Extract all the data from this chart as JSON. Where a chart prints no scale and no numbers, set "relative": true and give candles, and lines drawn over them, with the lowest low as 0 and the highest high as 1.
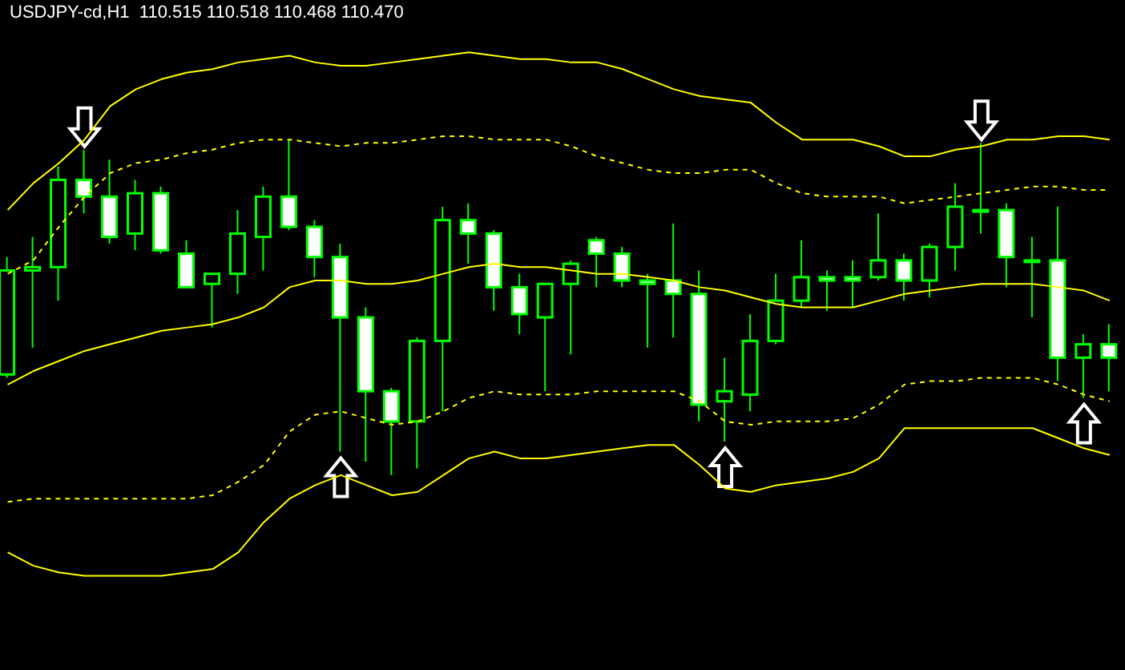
{
  "chart_data": {
    "type": "candlestick",
    "title": "USDJPY-cd,H1  110.515 110.518 110.468 110.470",
    "relative": true,
    "color": "#00ff00",
    "categories": [
      null,
      null,
      null,
      null,
      null,
      null,
      null,
      null,
      null,
      null,
      null,
      null,
      null,
      null,
      null,
      null,
      null,
      null,
      null,
      null,
      null,
      null,
      null,
      null,
      null,
      null,
      null,
      null,
      null,
      null,
      null,
      null,
      null,
      null,
      null,
      null,
      null,
      null,
      null,
      null,
      null,
      null,
      null,
      null
    ],
    "ohlc": [
      [
        0.3,
        0.65,
        0.29,
        0.61
      ],
      [
        0.61,
        0.71,
        0.38,
        0.62
      ],
      [
        0.62,
        0.92,
        0.52,
        0.88
      ],
      [
        0.88,
        0.97,
        0.78,
        0.83
      ],
      [
        0.83,
        0.94,
        0.69,
        0.71
      ],
      [
        0.72,
        0.88,
        0.67,
        0.84
      ],
      [
        0.84,
        0.86,
        0.66,
        0.67
      ],
      [
        0.66,
        0.7,
        0.56,
        0.56
      ],
      [
        0.57,
        0.6,
        0.44,
        0.6
      ],
      [
        0.6,
        0.79,
        0.54,
        0.72
      ],
      [
        0.71,
        0.86,
        0.61,
        0.83
      ],
      [
        0.83,
        1.0,
        0.73,
        0.74
      ],
      [
        0.74,
        0.76,
        0.59,
        0.65
      ],
      [
        0.65,
        0.69,
        0.07,
        0.47
      ],
      [
        0.47,
        0.5,
        0.04,
        0.25
      ],
      [
        0.25,
        0.26,
        0.0,
        0.16
      ],
      [
        0.16,
        0.41,
        0.02,
        0.4
      ],
      [
        0.4,
        0.8,
        0.19,
        0.76
      ],
      [
        0.76,
        0.81,
        0.63,
        0.72
      ],
      [
        0.72,
        0.73,
        0.49,
        0.56
      ],
      [
        0.56,
        0.6,
        0.42,
        0.48
      ],
      [
        0.47,
        0.57,
        0.25,
        0.57
      ],
      [
        0.57,
        0.64,
        0.36,
        0.63
      ],
      [
        0.7,
        0.71,
        0.56,
        0.66
      ],
      [
        0.66,
        0.68,
        0.56,
        0.58
      ],
      [
        0.58,
        0.6,
        0.38,
        0.57
      ],
      [
        0.58,
        0.75,
        0.41,
        0.54
      ],
      [
        0.54,
        0.61,
        0.16,
        0.21
      ],
      [
        0.22,
        0.35,
        0.1,
        0.25
      ],
      [
        0.24,
        0.48,
        0.19,
        0.4
      ],
      [
        0.4,
        0.6,
        0.39,
        0.52
      ],
      [
        0.52,
        0.7,
        0.5,
        0.59
      ],
      [
        0.59,
        0.61,
        0.49,
        0.58
      ],
      [
        0.59,
        0.64,
        0.5,
        0.58
      ],
      [
        0.59,
        0.78,
        0.58,
        0.64
      ],
      [
        0.64,
        0.66,
        0.52,
        0.58
      ],
      [
        0.58,
        0.69,
        0.53,
        0.68
      ],
      [
        0.68,
        0.87,
        0.61,
        0.8
      ],
      [
        0.79,
        0.99,
        0.72,
        0.79
      ],
      [
        0.79,
        0.81,
        0.56,
        0.65
      ],
      [
        0.64,
        0.71,
        0.47,
        0.64
      ],
      [
        0.64,
        0.8,
        0.28,
        0.35
      ],
      [
        0.35,
        0.42,
        0.23,
        0.39
      ],
      [
        0.39,
        0.45,
        0.25,
        0.35
      ]
    ],
    "series": [
      {
        "type": "line",
        "color": "#ffff00",
        "line_style": "solid",
        "values": [
          0.79,
          0.87,
          0.93,
          1.0,
          1.1,
          1.15,
          1.18,
          1.2,
          1.21,
          1.23,
          1.24,
          1.25,
          1.23,
          1.22,
          1.22,
          1.23,
          1.24,
          1.25,
          1.26,
          1.25,
          1.24,
          1.24,
          1.23,
          1.23,
          1.21,
          1.18,
          1.15,
          1.13,
          1.12,
          1.11,
          1.05,
          1.0,
          1.0,
          1.0,
          0.98,
          0.95,
          0.95,
          0.97,
          0.98,
          1.0,
          1.0,
          1.01,
          1.01,
          1.0
        ]
      },
      {
        "type": "line",
        "color": "#ffff00",
        "line_style": "dashed",
        "values": [
          0.6,
          0.64,
          0.74,
          0.83,
          0.9,
          0.93,
          0.94,
          0.96,
          0.97,
          0.99,
          1.0,
          1.0,
          0.99,
          0.98,
          0.99,
          0.99,
          1.0,
          1.01,
          1.01,
          1.0,
          1.0,
          1.0,
          0.98,
          0.95,
          0.93,
          0.91,
          0.9,
          0.9,
          0.91,
          0.91,
          0.87,
          0.84,
          0.83,
          0.83,
          0.83,
          0.81,
          0.82,
          0.83,
          0.84,
          0.85,
          0.86,
          0.86,
          0.85,
          0.85
        ]
      },
      {
        "type": "line",
        "color": "#ffff00",
        "line_style": "solid",
        "values": [
          0.27,
          0.31,
          0.34,
          0.37,
          0.39,
          0.41,
          0.43,
          0.44,
          0.45,
          0.47,
          0.5,
          0.56,
          0.58,
          0.58,
          0.57,
          0.57,
          0.58,
          0.6,
          0.62,
          0.63,
          0.62,
          0.62,
          0.61,
          0.6,
          0.6,
          0.59,
          0.58,
          0.56,
          0.55,
          0.53,
          0.51,
          0.5,
          0.5,
          0.5,
          0.52,
          0.54,
          0.55,
          0.56,
          0.57,
          0.57,
          0.57,
          0.56,
          0.55,
          0.52
        ]
      },
      {
        "type": "line",
        "color": "#ffff00",
        "line_style": "dashed",
        "values": [
          -0.08,
          -0.07,
          -0.07,
          -0.07,
          -0.07,
          -0.07,
          -0.07,
          -0.07,
          -0.06,
          -0.02,
          0.03,
          0.13,
          0.18,
          0.19,
          0.17,
          0.15,
          0.16,
          0.19,
          0.23,
          0.25,
          0.24,
          0.24,
          0.24,
          0.25,
          0.25,
          0.25,
          0.25,
          0.22,
          0.16,
          0.15,
          0.16,
          0.16,
          0.16,
          0.17,
          0.21,
          0.27,
          0.28,
          0.28,
          0.29,
          0.29,
          0.29,
          0.27,
          0.24,
          0.22
        ]
      },
      {
        "type": "line",
        "color": "#ffff00",
        "line_style": "solid",
        "values": [
          -0.23,
          -0.27,
          -0.29,
          -0.3,
          -0.3,
          -0.3,
          -0.3,
          -0.29,
          -0.28,
          -0.23,
          -0.14,
          -0.07,
          -0.03,
          0.0,
          -0.03,
          -0.06,
          -0.05,
          0.0,
          0.05,
          0.07,
          0.05,
          0.05,
          0.06,
          0.07,
          0.08,
          0.09,
          0.09,
          0.03,
          -0.04,
          -0.05,
          -0.03,
          -0.02,
          -0.01,
          0.01,
          0.05,
          0.14,
          0.14,
          0.14,
          0.14,
          0.14,
          0.14,
          0.11,
          0.08,
          0.06
        ]
      }
    ]
  }
}
